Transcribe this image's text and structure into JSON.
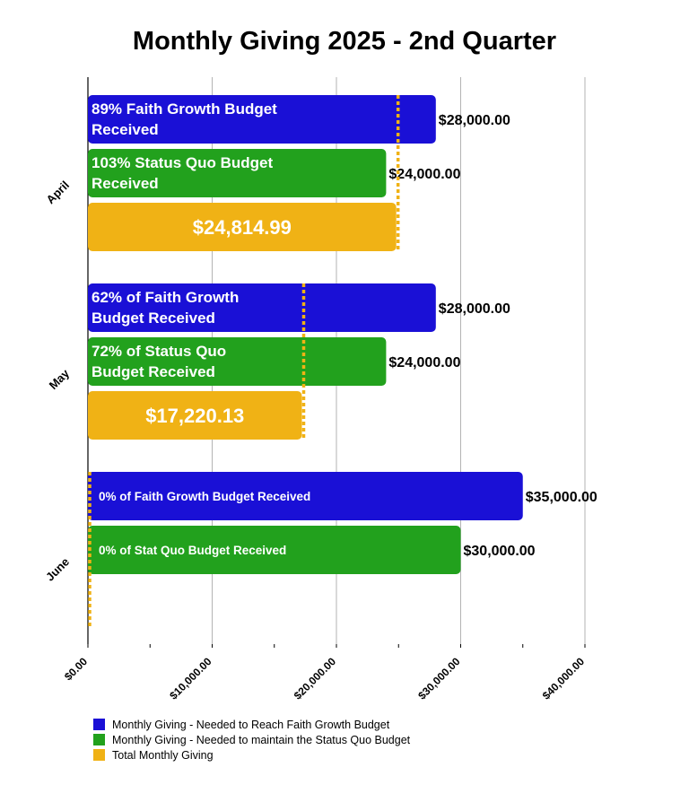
{
  "chart_data": {
    "type": "bar",
    "orientation": "horizontal",
    "title": "Monthly Giving 2025 - 2nd Quarter",
    "categories": [
      "April",
      "May",
      "June"
    ],
    "xlim": [
      0,
      40000
    ],
    "x_ticks": [
      "$0.00",
      "$10,000.00",
      "$20,000.00",
      "$30,000.00",
      "$40,000.00"
    ],
    "grid": true,
    "legend_position": "bottom-left",
    "series": [
      {
        "name": "Monthly Giving - Needed to Reach Faith Growth Budget",
        "color": "#1a10d6",
        "values": [
          28000,
          28000,
          35000
        ],
        "value_labels": [
          "$28,000.00",
          "$28,000.00",
          "$35,000.00"
        ],
        "bar_labels": [
          [
            "89% Faith Growth Budget",
            "Received"
          ],
          [
            "62% of Faith Growth",
            "Budget Received"
          ],
          [
            "0% of Faith Growth Budget Received"
          ]
        ]
      },
      {
        "name": "Monthly Giving - Needed to maintain the Status Quo Budget",
        "color": "#22a11d",
        "values": [
          24000,
          24000,
          30000
        ],
        "value_labels": [
          "$24,000.00",
          "$24,000.00",
          "$30,000.00"
        ],
        "bar_labels": [
          [
            "103% Status Quo Budget",
            "Received"
          ],
          [
            "72% of Status Quo",
            "Budget Received"
          ],
          [
            "0% of Stat Quo Budget Received"
          ]
        ]
      },
      {
        "name": "Total Monthly Giving",
        "color": "#f0b215",
        "values": [
          24814.99,
          17220.13,
          0
        ],
        "bar_labels": [
          [
            "$24,814.99"
          ],
          [
            "$17,220.13"
          ],
          []
        ]
      }
    ]
  }
}
